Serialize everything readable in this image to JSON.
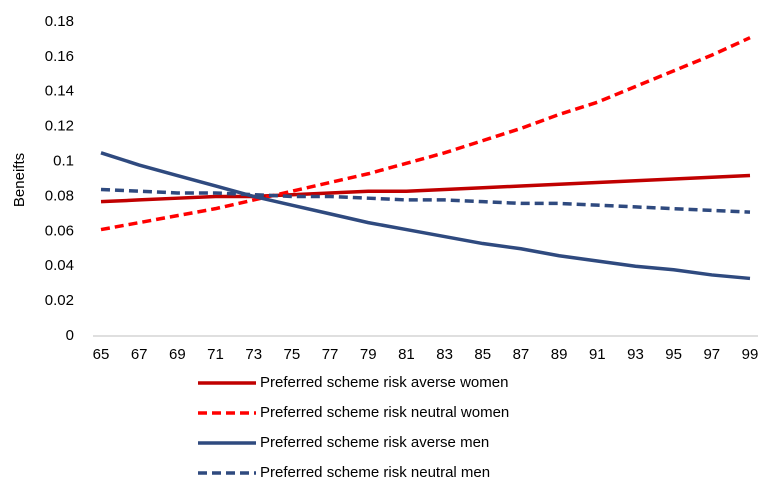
{
  "chart_data": {
    "type": "line",
    "y_label": "Beneifts",
    "x": [
      65,
      67,
      69,
      71,
      73,
      75,
      77,
      79,
      81,
      83,
      85,
      87,
      89,
      91,
      93,
      95,
      97,
      99
    ],
    "xlim": [
      65,
      99
    ],
    "ylim": [
      0,
      0.18
    ],
    "yticks": [
      0,
      0.02,
      0.04,
      0.06,
      0.08,
      0.1,
      0.12,
      0.14,
      0.16,
      0.18
    ],
    "grid": false,
    "legend": "bottom",
    "series": [
      {
        "name": "Preferred scheme risk averse women",
        "color": "#c00000",
        "dash": false,
        "values": [
          0.077,
          0.078,
          0.079,
          0.08,
          0.08,
          0.081,
          0.082,
          0.083,
          0.083,
          0.084,
          0.085,
          0.086,
          0.087,
          0.088,
          0.089,
          0.09,
          0.091,
          0.092
        ]
      },
      {
        "name": "Preferred scheme risk neutral women",
        "color": "#ff0000",
        "dash": true,
        "values": [
          0.061,
          0.065,
          0.069,
          0.073,
          0.078,
          0.083,
          0.088,
          0.093,
          0.099,
          0.105,
          0.112,
          0.119,
          0.127,
          0.134,
          0.143,
          0.152,
          0.161,
          0.171
        ]
      },
      {
        "name": "Preferred scheme risk averse men",
        "color": "#2f4a7f",
        "dash": false,
        "values": [
          0.105,
          0.098,
          0.092,
          0.086,
          0.08,
          0.075,
          0.07,
          0.065,
          0.061,
          0.057,
          0.053,
          0.05,
          0.046,
          0.043,
          0.04,
          0.038,
          0.035,
          0.033
        ]
      },
      {
        "name": "Preferred scheme risk neutral men",
        "color": "#2f4a7f",
        "dash": true,
        "values": [
          0.084,
          0.083,
          0.082,
          0.082,
          0.081,
          0.08,
          0.08,
          0.079,
          0.078,
          0.078,
          0.077,
          0.076,
          0.076,
          0.075,
          0.074,
          0.073,
          0.072,
          0.071
        ]
      }
    ]
  }
}
